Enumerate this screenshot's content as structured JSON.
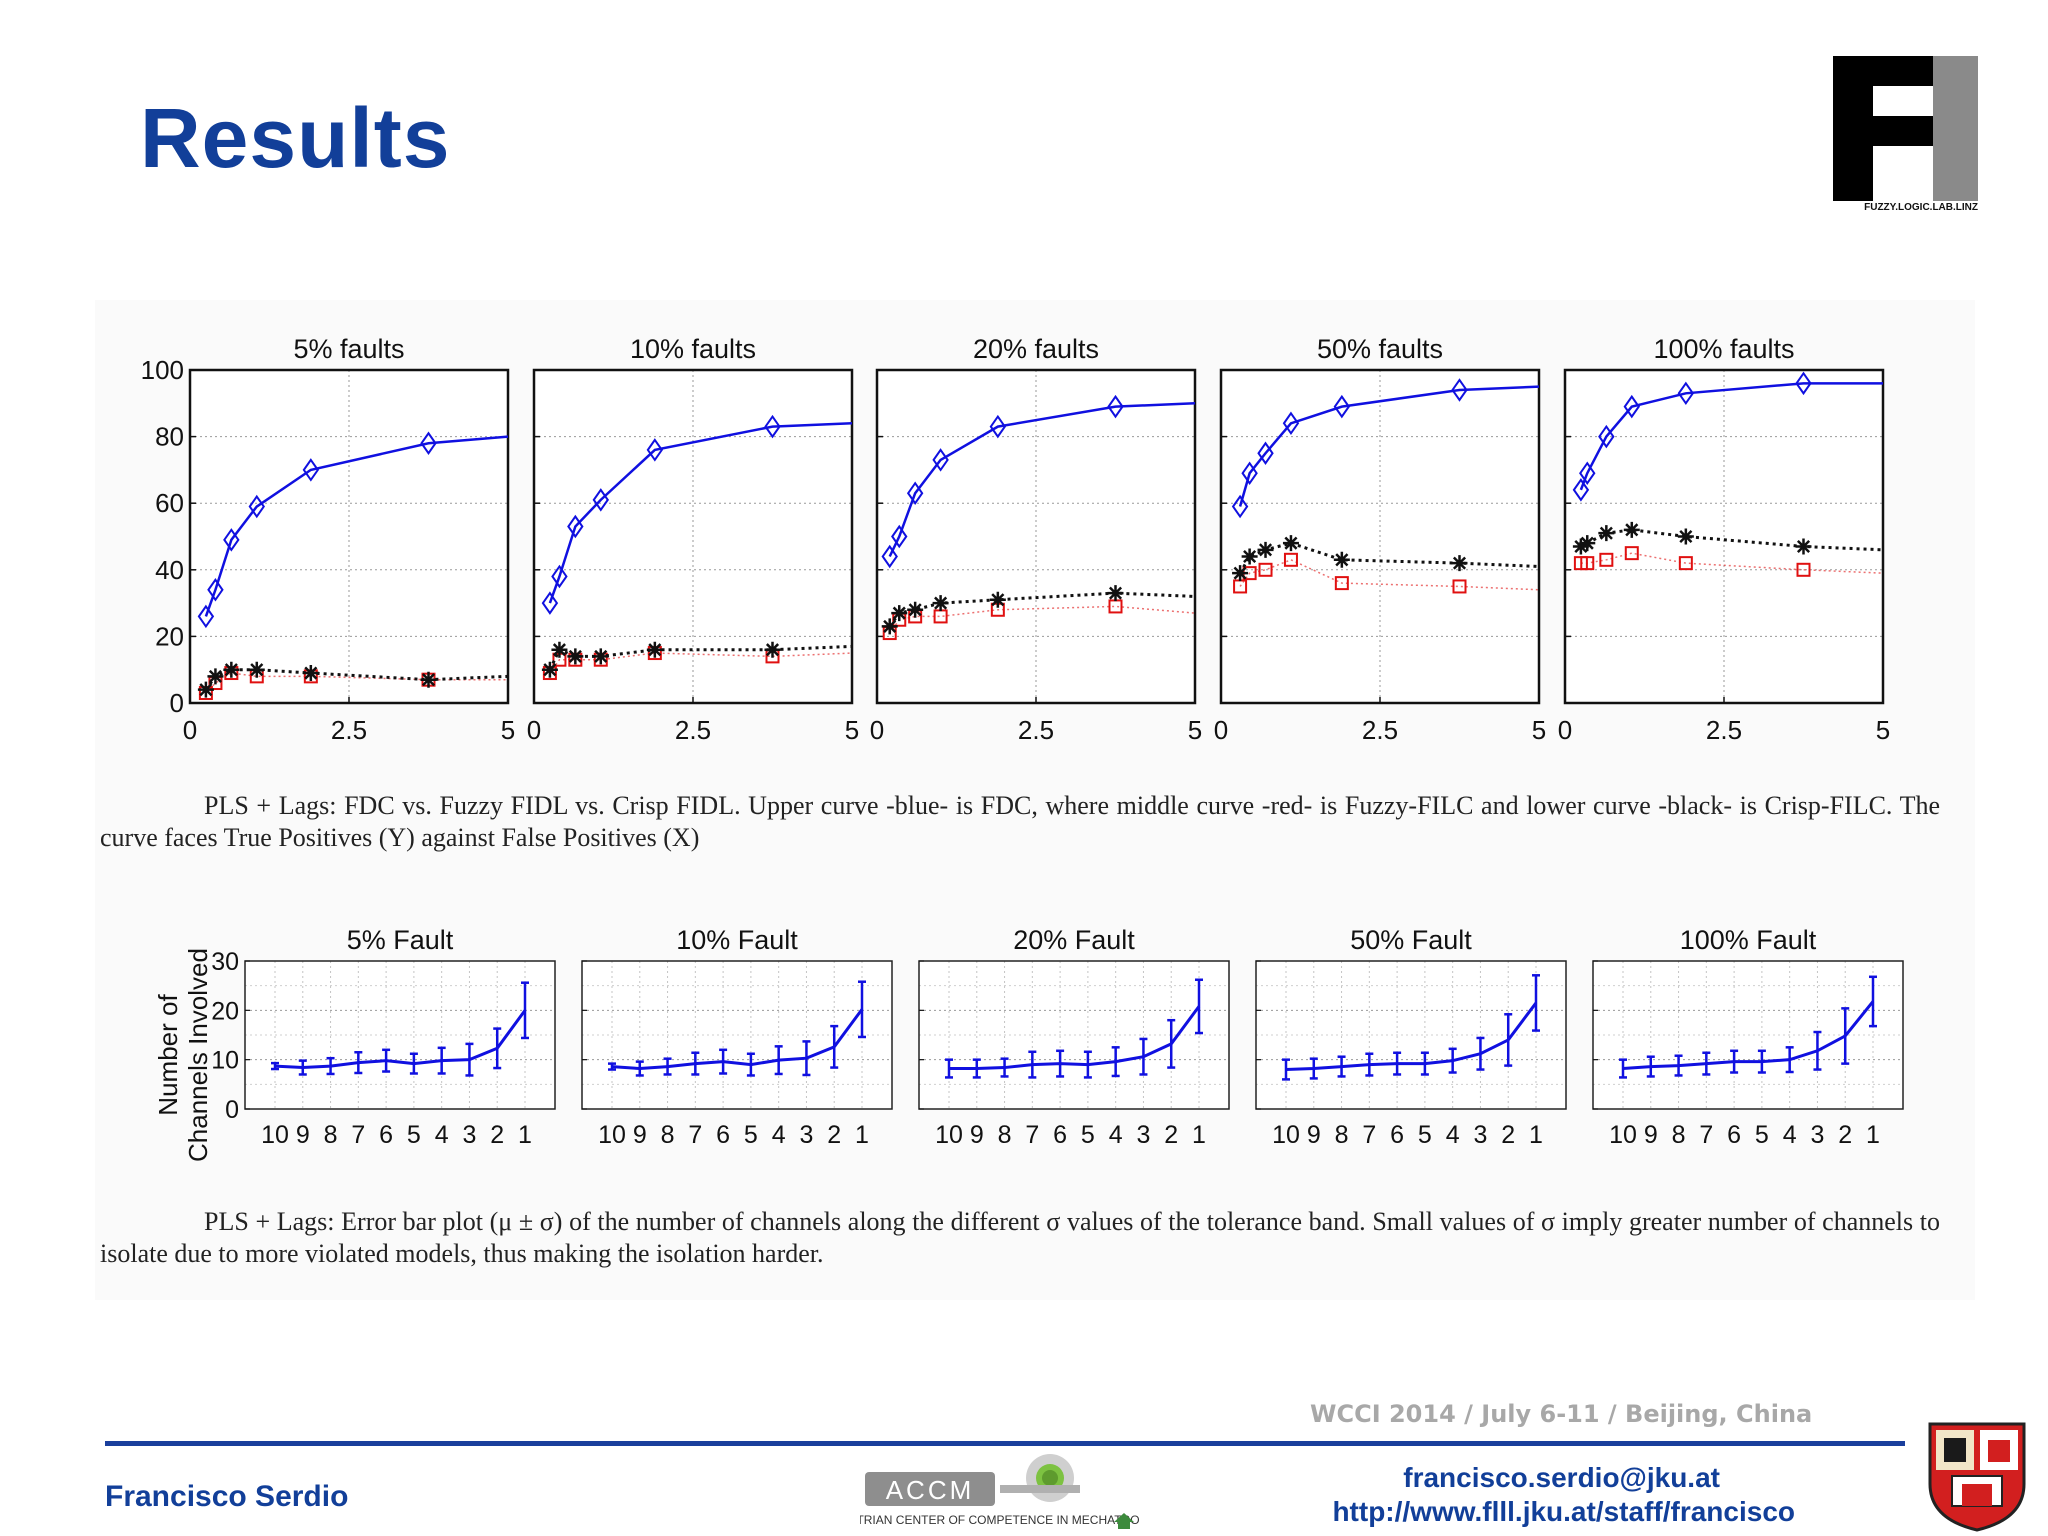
{
  "slide": {
    "title": "Results",
    "logo_text": "FUZZY.LOGIC.LAB.LINZ",
    "caption1": "PLS + Lags: FDC vs. Fuzzy FIDL vs. Crisp FIDL. Upper curve -blue- is FDC, where middle curve -red- is Fuzzy-FILC and lower curve -black- is Crisp-FILC. The curve faces True Positives (Y) against False Positives (X)",
    "caption2": "PLS + Lags: Error bar plot (μ ± σ) of the number of channels along the different σ values of the tolerance band. Small values of σ imply greater number of channels to isolate due to more violated models, thus making the isolation harder.",
    "event": "WCCI 2014 / July 6-11 / Beijing, China",
    "author": "Francisco Serdio",
    "email": "francisco.serdio@jku.at",
    "url": "http://www.flll.jku.at/staff/francisco",
    "accm_name": "ACCM",
    "accm_sub": "AUSTRIAN CENTER OF COMPETENCE IN MECHATRONICS"
  },
  "colors": {
    "title_blue": "#123f99",
    "fdc_blue": "#1010e0",
    "fuzzy_red": "#e01010",
    "crisp_black": "#111111",
    "grid": "#9a9a9a"
  },
  "chart_data": [
    {
      "type": "line",
      "title": "5% faults",
      "xlim": [
        0,
        5
      ],
      "ylim": [
        0,
        100
      ],
      "xticks": [
        0,
        2.5,
        5
      ],
      "xtick_labels": [
        "0",
        "2.5",
        "5"
      ],
      "yticks": [
        0,
        20,
        40,
        60,
        80,
        100
      ],
      "ytick_labels": [
        "0",
        "20",
        "40",
        "60",
        "80",
        "100"
      ],
      "grid": true,
      "series": [
        {
          "key": "fdc",
          "marker": "diamond",
          "x": [
            0.25,
            0.4,
            0.65,
            1.05,
            1.9,
            3.75
          ],
          "y": [
            26,
            34,
            49,
            59,
            70,
            78
          ],
          "tail": [
            5,
            80
          ]
        },
        {
          "key": "fuzzy",
          "marker": "square",
          "x": [
            0.25,
            0.4,
            0.65,
            1.05,
            1.9,
            3.75
          ],
          "y": [
            3,
            6,
            9,
            8,
            8,
            7
          ],
          "tail": [
            5,
            7
          ]
        },
        {
          "key": "crisp",
          "marker": "star",
          "x": [
            0.25,
            0.4,
            0.65,
            1.05,
            1.9,
            3.75
          ],
          "y": [
            4,
            8,
            10,
            10,
            9,
            7
          ],
          "tail": [
            5,
            8
          ]
        }
      ]
    },
    {
      "type": "line",
      "title": "10% faults",
      "xlim": [
        0,
        5
      ],
      "ylim": [
        0,
        100
      ],
      "xticks": [
        0,
        2.5,
        5
      ],
      "xtick_labels": [
        "0",
        "2.5",
        "5"
      ],
      "yticks": [
        0,
        20,
        40,
        60,
        80,
        100
      ],
      "ytick_labels": [
        "",
        "",
        "",
        "",
        "",
        ""
      ],
      "grid": true,
      "series": [
        {
          "key": "fdc",
          "marker": "diamond",
          "x": [
            0.25,
            0.4,
            0.65,
            1.05,
            1.9,
            3.75
          ],
          "y": [
            30,
            38,
            53,
            61,
            76,
            83
          ],
          "tail": [
            5,
            84
          ]
        },
        {
          "key": "fuzzy",
          "marker": "square",
          "x": [
            0.25,
            0.4,
            0.65,
            1.05,
            1.9,
            3.75
          ],
          "y": [
            9,
            13,
            13,
            13,
            15,
            14
          ],
          "tail": [
            5,
            15
          ]
        },
        {
          "key": "crisp",
          "marker": "star",
          "x": [
            0.25,
            0.4,
            0.65,
            1.05,
            1.9,
            3.75
          ],
          "y": [
            10,
            16,
            14,
            14,
            16,
            16
          ],
          "tail": [
            5,
            17
          ]
        }
      ]
    },
    {
      "type": "line",
      "title": "20% faults",
      "xlim": [
        0,
        5
      ],
      "ylim": [
        0,
        100
      ],
      "xticks": [
        0,
        2.5,
        5
      ],
      "xtick_labels": [
        "0",
        "2.5",
        "5"
      ],
      "yticks": [
        0,
        20,
        40,
        60,
        80,
        100
      ],
      "ytick_labels": [
        "",
        "",
        "",
        "",
        "",
        ""
      ],
      "grid": true,
      "series": [
        {
          "key": "fdc",
          "marker": "diamond",
          "x": [
            0.2,
            0.35,
            0.6,
            1.0,
            1.9,
            3.75
          ],
          "y": [
            44,
            50,
            63,
            73,
            83,
            89
          ],
          "tail": [
            5,
            90
          ]
        },
        {
          "key": "fuzzy",
          "marker": "square",
          "x": [
            0.2,
            0.35,
            0.6,
            1.0,
            1.9,
            3.75
          ],
          "y": [
            21,
            25,
            26,
            26,
            28,
            29
          ],
          "tail": [
            5,
            27
          ]
        },
        {
          "key": "crisp",
          "marker": "star",
          "x": [
            0.2,
            0.35,
            0.6,
            1.0,
            1.9,
            3.75
          ],
          "y": [
            23,
            27,
            28,
            30,
            31,
            33
          ],
          "tail": [
            5,
            32
          ]
        }
      ]
    },
    {
      "type": "line",
      "title": "50% faults",
      "xlim": [
        0,
        5
      ],
      "ylim": [
        0,
        100
      ],
      "xticks": [
        0,
        2.5,
        5
      ],
      "xtick_labels": [
        "0",
        "2.5",
        "5"
      ],
      "yticks": [
        0,
        20,
        40,
        60,
        80,
        100
      ],
      "ytick_labels": [
        "",
        "",
        "",
        "",
        "",
        ""
      ],
      "grid": true,
      "series": [
        {
          "key": "fdc",
          "marker": "diamond",
          "x": [
            0.3,
            0.45,
            0.7,
            1.1,
            1.9,
            3.75
          ],
          "y": [
            59,
            69,
            75,
            84,
            89,
            94
          ],
          "tail": [
            5,
            95
          ]
        },
        {
          "key": "fuzzy",
          "marker": "square",
          "x": [
            0.3,
            0.45,
            0.7,
            1.1,
            1.9,
            3.75
          ],
          "y": [
            35,
            39,
            40,
            43,
            36,
            35
          ],
          "tail": [
            5,
            34
          ]
        },
        {
          "key": "crisp",
          "marker": "star",
          "x": [
            0.3,
            0.45,
            0.7,
            1.1,
            1.9,
            3.75
          ],
          "y": [
            39,
            44,
            46,
            48,
            43,
            42
          ],
          "tail": [
            5,
            41
          ]
        }
      ]
    },
    {
      "type": "line",
      "title": "100% faults",
      "xlim": [
        0,
        5
      ],
      "ylim": [
        0,
        100
      ],
      "xticks": [
        0,
        2.5,
        5
      ],
      "xtick_labels": [
        "0",
        "2.5",
        "5"
      ],
      "yticks": [
        0,
        20,
        40,
        60,
        80,
        100
      ],
      "ytick_labels": [
        "",
        "",
        "",
        "",
        "",
        ""
      ],
      "grid": true,
      "series": [
        {
          "key": "fdc",
          "marker": "diamond",
          "x": [
            0.25,
            0.35,
            0.65,
            1.05,
            1.9,
            3.75
          ],
          "y": [
            64,
            69,
            80,
            89,
            93,
            96
          ],
          "tail": [
            5,
            96
          ]
        },
        {
          "key": "fuzzy",
          "marker": "square",
          "x": [
            0.25,
            0.35,
            0.65,
            1.05,
            1.9,
            3.75
          ],
          "y": [
            42,
            42,
            43,
            45,
            42,
            40
          ],
          "tail": [
            5,
            39
          ]
        },
        {
          "key": "crisp",
          "marker": "star",
          "x": [
            0.25,
            0.35,
            0.65,
            1.05,
            1.9,
            3.75
          ],
          "y": [
            47,
            48,
            51,
            52,
            50,
            47
          ],
          "tail": [
            5,
            46
          ]
        }
      ]
    },
    {
      "type": "line",
      "title": "5% Fault",
      "ylabel": [
        "Number of",
        "Channels Involved"
      ],
      "x_labels": [
        "10",
        "9",
        "8",
        "7",
        "6",
        "5",
        "4",
        "3",
        "2",
        "1"
      ],
      "ylim": [
        0,
        30
      ],
      "yticks": [
        0,
        10,
        20,
        30
      ],
      "ytick_labels": [
        "0",
        "10",
        "20",
        "30"
      ],
      "grid": true,
      "mean": [
        8.7,
        8.4,
        8.7,
        9.4,
        9.8,
        9.2,
        9.8,
        10.0,
        12.3,
        20.0
      ],
      "std": [
        0.6,
        1.4,
        1.6,
        2.1,
        2.2,
        2.0,
        2.6,
        3.2,
        4.0,
        5.6
      ]
    },
    {
      "type": "line",
      "title": "10% Fault",
      "x_labels": [
        "10",
        "9",
        "8",
        "7",
        "6",
        "5",
        "4",
        "3",
        "2",
        "1"
      ],
      "ylim": [
        0,
        30
      ],
      "yticks": [
        0,
        10,
        20,
        30
      ],
      "ytick_labels": [
        "",
        "",
        "",
        ""
      ],
      "grid": true,
      "mean": [
        8.6,
        8.2,
        8.6,
        9.2,
        9.6,
        9.0,
        9.9,
        10.3,
        12.6,
        20.2
      ],
      "std": [
        0.6,
        1.4,
        1.6,
        2.2,
        2.4,
        2.2,
        2.8,
        3.4,
        4.2,
        5.6
      ]
    },
    {
      "type": "line",
      "title": "20% Fault",
      "x_labels": [
        "10",
        "9",
        "8",
        "7",
        "6",
        "5",
        "4",
        "3",
        "2",
        "1"
      ],
      "ylim": [
        0,
        30
      ],
      "yticks": [
        0,
        10,
        20,
        30
      ],
      "ytick_labels": [
        "",
        "",
        "",
        ""
      ],
      "grid": true,
      "mean": [
        8.2,
        8.2,
        8.4,
        9.0,
        9.2,
        9.0,
        9.6,
        10.6,
        13.2,
        20.8
      ],
      "std": [
        1.8,
        1.8,
        1.8,
        2.6,
        2.6,
        2.6,
        2.9,
        3.6,
        4.8,
        5.4
      ]
    },
    {
      "type": "line",
      "title": "50% Fault",
      "x_labels": [
        "10",
        "9",
        "8",
        "7",
        "6",
        "5",
        "4",
        "3",
        "2",
        "1"
      ],
      "ylim": [
        0,
        30
      ],
      "yticks": [
        0,
        10,
        20,
        30
      ],
      "ytick_labels": [
        "",
        "",
        "",
        ""
      ],
      "grid": true,
      "mean": [
        8.0,
        8.2,
        8.6,
        9.0,
        9.2,
        9.2,
        9.8,
        11.2,
        14.0,
        21.5
      ],
      "std": [
        2.0,
        2.0,
        2.0,
        2.2,
        2.2,
        2.2,
        2.4,
        3.2,
        5.2,
        5.6
      ]
    },
    {
      "type": "line",
      "title": "100% Fault",
      "x_labels": [
        "10",
        "9",
        "8",
        "7",
        "6",
        "5",
        "4",
        "3",
        "2",
        "1"
      ],
      "ylim": [
        0,
        30
      ],
      "yticks": [
        0,
        10,
        20,
        30
      ],
      "ytick_labels": [
        "",
        "",
        "",
        ""
      ],
      "grid": true,
      "mean": [
        8.2,
        8.6,
        8.8,
        9.2,
        9.6,
        9.6,
        10.0,
        11.8,
        14.8,
        21.8
      ],
      "std": [
        1.8,
        2.0,
        2.0,
        2.2,
        2.2,
        2.2,
        2.5,
        3.8,
        5.6,
        5.0
      ]
    }
  ]
}
